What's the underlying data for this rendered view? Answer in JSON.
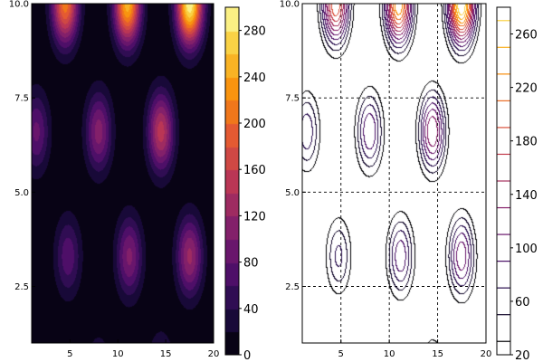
{
  "chart_data": [
    {
      "type": "heatmap",
      "style": "filled-contour",
      "colormap": "inferno",
      "xlim": [
        1,
        20
      ],
      "ylim": [
        1,
        10
      ],
      "x_ticks": [
        5,
        10,
        15,
        20
      ],
      "y_ticks": [
        2.5,
        5.0,
        7.5,
        10.0
      ],
      "x_tick_labels": [
        "5",
        "10",
        "15",
        "20"
      ],
      "y_tick_labels": [
        "2.5",
        "5.0",
        "7.5",
        "10.0"
      ],
      "colorbar": {
        "range": [
          0,
          300
        ],
        "levels": [
          0,
          20,
          40,
          60,
          80,
          100,
          120,
          140,
          160,
          180,
          200,
          220,
          240,
          260,
          280,
          300
        ],
        "ticks": [
          0,
          40,
          80,
          120,
          160,
          200,
          240,
          280
        ],
        "tick_labels": [
          "0",
          "40",
          "80",
          "120",
          "160",
          "200",
          "240",
          "280"
        ]
      },
      "peaks": [
        {
          "x": 4.5,
          "y": 10.0,
          "value": 210
        },
        {
          "x": 11.0,
          "y": 10.0,
          "value": 250
        },
        {
          "x": 17.5,
          "y": 10.0,
          "value": 295
        },
        {
          "x": 1.5,
          "y": 6.6,
          "value": 85
        },
        {
          "x": 8.0,
          "y": 6.6,
          "value": 110
        },
        {
          "x": 14.5,
          "y": 6.6,
          "value": 150
        },
        {
          "x": 4.8,
          "y": 3.3,
          "value": 75
        },
        {
          "x": 11.2,
          "y": 3.3,
          "value": 105
        },
        {
          "x": 17.5,
          "y": 3.3,
          "value": 125
        },
        {
          "x": 8.0,
          "y": 0.2,
          "value": 45
        },
        {
          "x": 14.5,
          "y": 0.2,
          "value": 60
        }
      ],
      "grid": false
    },
    {
      "type": "heatmap",
      "style": "line-contour",
      "colormap": "inferno",
      "xlim": [
        1,
        20
      ],
      "ylim": [
        1,
        10
      ],
      "x_ticks": [
        5,
        10,
        15,
        20
      ],
      "y_ticks": [
        2.5,
        5.0,
        7.5,
        10.0
      ],
      "x_tick_labels": [
        "5",
        "10",
        "15",
        "20"
      ],
      "y_tick_labels": [
        "2.5",
        "5.0",
        "7.5",
        "10.0"
      ],
      "contour_levels": [
        30,
        50,
        70,
        90,
        110,
        130,
        150,
        170,
        190,
        210,
        230,
        250,
        270
      ],
      "colorbar": {
        "range": [
          20,
          280
        ],
        "levels": [
          30,
          50,
          70,
          90,
          110,
          130,
          150,
          170,
          190,
          210,
          230,
          250,
          270
        ],
        "ticks": [
          20,
          60,
          100,
          140,
          180,
          220,
          260
        ],
        "tick_labels": [
          "20",
          "60",
          "100",
          "140",
          "180",
          "220",
          "260"
        ]
      },
      "reference_lines": {
        "vertical_x": [
          5,
          10,
          15
        ],
        "horizontal_y": [
          2.5,
          5.0,
          7.5
        ],
        "style": "dashed"
      },
      "grid": false
    }
  ]
}
